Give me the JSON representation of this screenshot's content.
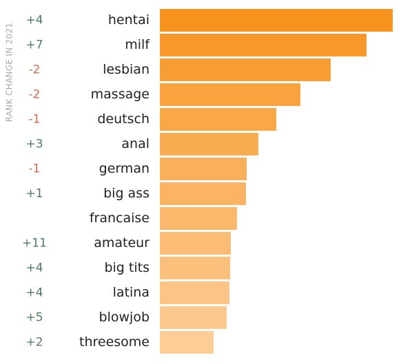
{
  "chart_data": {
    "type": "bar",
    "orientation": "horizontal",
    "rank_change_label": "RANK CHANGE IN 2021",
    "categories": [
      "hentai",
      "milf",
      "lesbian",
      "massage",
      "deutsch",
      "anal",
      "german",
      "big ass",
      "francaise",
      "amateur",
      "big tits",
      "latina",
      "blowjob",
      "threesome"
    ],
    "values": [
      338,
      300,
      248,
      204,
      169,
      143,
      126,
      125,
      112,
      103,
      102,
      101,
      97,
      78
    ],
    "rank_changes": [
      "+4",
      "+7",
      "-2",
      "-2",
      "-1",
      "+3",
      "-1",
      "+1",
      null,
      "+11",
      "+4",
      "+4",
      "+5",
      "+2"
    ],
    "colors": [
      "#f7931e",
      "#f8982a",
      "#f89d34",
      "#f9a23e",
      "#f9a747",
      "#faac51",
      "#fab05a",
      "#fbb463",
      "#fbb86c",
      "#fcbc74",
      "#fcc07d",
      "#fdc485",
      "#fdc88d",
      "#fecc95"
    ],
    "positive_color": "#4d7d5c",
    "negative_color": "#d2694d"
  }
}
